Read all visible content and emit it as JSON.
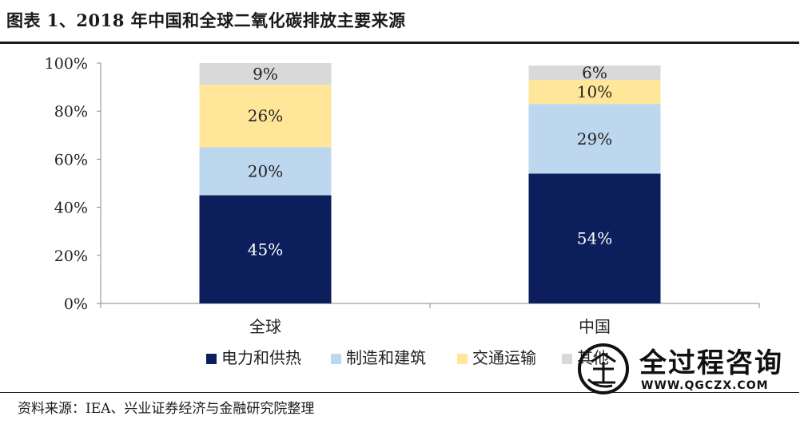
{
  "figure": {
    "title": "图表 1、2018 年中国和全球二氧化碳排放主要来源",
    "source": "资料来源：IEA、兴业证券经济与金融研究院整理"
  },
  "watermark": {
    "name": "全过程咨询",
    "url": "WWW.QGCZX.COM"
  },
  "chart_data": {
    "type": "bar",
    "stacked": true,
    "categories": [
      "全球",
      "中国"
    ],
    "series": [
      {
        "name": "电力和供热",
        "values": [
          45,
          54
        ],
        "labels": [
          "45%",
          "54%"
        ],
        "color": "#0c1f5c",
        "label_color": "#ffffff"
      },
      {
        "name": "制造和建筑",
        "values": [
          20,
          29
        ],
        "labels": [
          "20%",
          "29%"
        ],
        "color": "#bdd7ee",
        "label_color": "#222222"
      },
      {
        "name": "交通运输",
        "values": [
          26,
          10
        ],
        "labels": [
          "26%",
          "10%"
        ],
        "color": "#ffe699",
        "label_color": "#222222"
      },
      {
        "name": "其他",
        "values": [
          9,
          6
        ],
        "labels": [
          "9%",
          "6%"
        ],
        "color": "#d9d9d9",
        "label_color": "#222222"
      }
    ],
    "ylim": [
      0,
      100
    ],
    "yticks": [
      0,
      20,
      40,
      60,
      80,
      100
    ],
    "ytick_labels": [
      "0%",
      "20%",
      "40%",
      "60%",
      "80%",
      "100%"
    ],
    "grid": false,
    "legend_position": "bottom"
  }
}
